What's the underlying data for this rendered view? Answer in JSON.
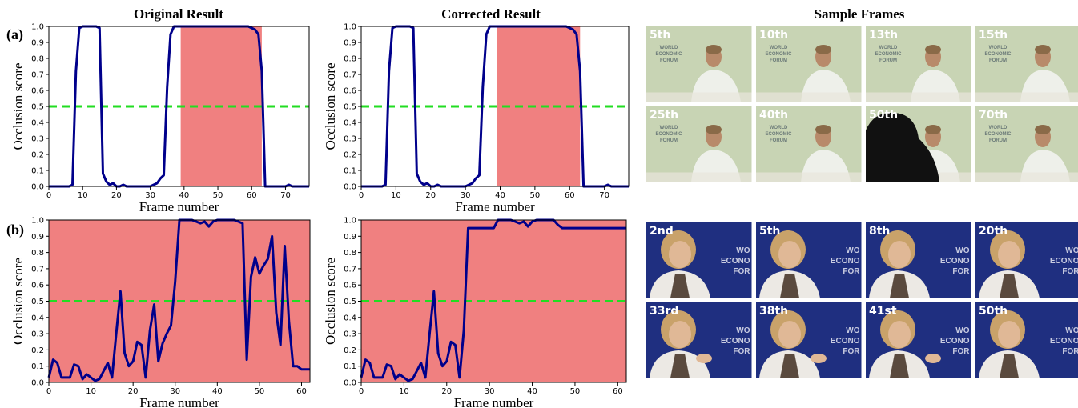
{
  "headers": {
    "original": "Original Result",
    "corrected": "Corrected Result",
    "frames": "Sample Frames"
  },
  "row_labels": [
    "(a)",
    "(b)"
  ],
  "chart_data": [
    {
      "id": "a-original",
      "type": "line",
      "xlabel": "Frame number",
      "ylabel": "Occlusion score",
      "xlim": [
        0,
        77
      ],
      "ylim": [
        0,
        1
      ],
      "xticks": [
        0,
        10,
        20,
        30,
        40,
        50,
        60,
        70
      ],
      "yticks": [
        0,
        0.1,
        0.2,
        0.3,
        0.4,
        0.5,
        0.6,
        0.7,
        0.8,
        0.9,
        1.0
      ],
      "threshold": 0.5,
      "shaded_spans": [
        [
          39,
          63
        ]
      ],
      "line_color": "#00008b",
      "threshold_color": "#22dd22",
      "shade_color": "#f08080",
      "x": [
        0,
        1,
        2,
        3,
        4,
        5,
        6,
        7,
        8,
        9,
        10,
        11,
        12,
        13,
        14,
        15,
        16,
        17,
        18,
        19,
        20,
        21,
        22,
        23,
        24,
        25,
        26,
        27,
        28,
        29,
        30,
        31,
        32,
        33,
        34,
        35,
        36,
        37,
        38,
        39,
        40,
        41,
        42,
        43,
        44,
        45,
        46,
        47,
        48,
        49,
        50,
        51,
        52,
        53,
        54,
        55,
        56,
        57,
        58,
        59,
        60,
        61,
        62,
        63,
        64,
        65,
        66,
        67,
        68,
        69,
        70,
        71,
        72,
        73,
        74,
        75,
        76,
        77
      ],
      "y": [
        0,
        0,
        0,
        0,
        0,
        0,
        0,
        0.01,
        0.72,
        0.99,
        1,
        1,
        1,
        1,
        1,
        0.99,
        0.08,
        0.03,
        0.01,
        0.02,
        0.0,
        0.0,
        0.01,
        0.0,
        0.0,
        0.0,
        0.0,
        0.0,
        0.0,
        0.0,
        0.0,
        0.01,
        0.02,
        0.05,
        0.07,
        0.62,
        0.95,
        1,
        1,
        1,
        1,
        1,
        1,
        1,
        1,
        1,
        1,
        1,
        1,
        1,
        1,
        1,
        1,
        1,
        1,
        1,
        1,
        1,
        1,
        1,
        0.99,
        0.98,
        0.95,
        0.72,
        0,
        0,
        0,
        0,
        0,
        0,
        0,
        0.01,
        0,
        0,
        0,
        0,
        0,
        0
      ]
    },
    {
      "id": "a-corrected",
      "type": "line",
      "xlabel": "Frame number",
      "ylabel": "Occlusion score",
      "xlim": [
        0,
        77
      ],
      "ylim": [
        0,
        1
      ],
      "xticks": [
        0,
        10,
        20,
        30,
        40,
        50,
        60,
        70
      ],
      "yticks": [
        0,
        0.1,
        0.2,
        0.3,
        0.4,
        0.5,
        0.6,
        0.7,
        0.8,
        0.9,
        1.0
      ],
      "threshold": 0.5,
      "shaded_spans": [
        [
          39,
          63
        ]
      ],
      "line_color": "#00008b",
      "threshold_color": "#22dd22",
      "shade_color": "#f08080",
      "x": [
        0,
        1,
        2,
        3,
        4,
        5,
        6,
        7,
        8,
        9,
        10,
        11,
        12,
        13,
        14,
        15,
        16,
        17,
        18,
        19,
        20,
        21,
        22,
        23,
        24,
        25,
        26,
        27,
        28,
        29,
        30,
        31,
        32,
        33,
        34,
        35,
        36,
        37,
        38,
        39,
        40,
        41,
        42,
        43,
        44,
        45,
        46,
        47,
        48,
        49,
        50,
        51,
        52,
        53,
        54,
        55,
        56,
        57,
        58,
        59,
        60,
        61,
        62,
        63,
        64,
        65,
        66,
        67,
        68,
        69,
        70,
        71,
        72,
        73,
        74,
        75,
        76,
        77
      ],
      "y": [
        0,
        0,
        0,
        0,
        0,
        0,
        0,
        0.01,
        0.72,
        0.99,
        1,
        1,
        1,
        1,
        1,
        0.99,
        0.08,
        0.03,
        0.01,
        0.02,
        0.0,
        0.0,
        0.01,
        0.0,
        0.0,
        0.0,
        0.0,
        0.0,
        0.0,
        0.0,
        0.0,
        0.01,
        0.02,
        0.05,
        0.07,
        0.62,
        0.95,
        1,
        1,
        1,
        1,
        1,
        1,
        1,
        1,
        1,
        1,
        1,
        1,
        1,
        1,
        1,
        1,
        1,
        1,
        1,
        1,
        1,
        1,
        1,
        0.99,
        0.98,
        0.95,
        0.72,
        0,
        0,
        0,
        0,
        0,
        0,
        0,
        0.01,
        0,
        0,
        0,
        0,
        0,
        0
      ]
    },
    {
      "id": "b-original",
      "type": "line",
      "xlabel": "Frame number",
      "ylabel": "Occlusion score",
      "xlim": [
        0,
        62
      ],
      "ylim": [
        0,
        1
      ],
      "xticks": [
        0,
        10,
        20,
        30,
        40,
        50,
        60
      ],
      "yticks": [
        0,
        0.1,
        0.2,
        0.3,
        0.4,
        0.5,
        0.6,
        0.7,
        0.8,
        0.9,
        1.0
      ],
      "threshold": 0.5,
      "shaded_spans": [
        [
          0,
          62
        ]
      ],
      "line_color": "#00008b",
      "threshold_color": "#22dd22",
      "shade_color": "#f08080",
      "x": [
        0,
        1,
        2,
        3,
        4,
        5,
        6,
        7,
        8,
        9,
        10,
        11,
        12,
        13,
        14,
        15,
        16,
        17,
        18,
        19,
        20,
        21,
        22,
        23,
        24,
        25,
        26,
        27,
        28,
        29,
        30,
        31,
        32,
        33,
        34,
        35,
        36,
        37,
        38,
        39,
        40,
        41,
        42,
        43,
        44,
        45,
        46,
        47,
        48,
        49,
        50,
        51,
        52,
        53,
        54,
        55,
        56,
        57,
        58,
        59,
        60,
        61,
        62
      ],
      "y": [
        0.03,
        0.14,
        0.12,
        0.03,
        0.03,
        0.03,
        0.11,
        0.1,
        0.02,
        0.05,
        0.03,
        0.01,
        0.02,
        0.07,
        0.12,
        0.03,
        0.3,
        0.56,
        0.18,
        0.1,
        0.13,
        0.25,
        0.23,
        0.03,
        0.32,
        0.48,
        0.13,
        0.24,
        0.3,
        0.35,
        0.62,
        1.0,
        1.0,
        1.0,
        1.0,
        0.99,
        0.98,
        0.99,
        0.96,
        0.99,
        1.0,
        1.0,
        1.0,
        1.0,
        1.0,
        0.99,
        0.98,
        0.14,
        0.65,
        0.77,
        0.67,
        0.72,
        0.76,
        0.9,
        0.43,
        0.23,
        0.84,
        0.38,
        0.1,
        0.1,
        0.08,
        0.08,
        0.08
      ]
    },
    {
      "id": "b-corrected",
      "type": "line",
      "xlabel": "Frame number",
      "ylabel": "Occlusion score",
      "xlim": [
        0,
        62
      ],
      "ylim": [
        0,
        1
      ],
      "xticks": [
        0,
        10,
        20,
        30,
        40,
        50,
        60
      ],
      "yticks": [
        0,
        0.1,
        0.2,
        0.3,
        0.4,
        0.5,
        0.6,
        0.7,
        0.8,
        0.9,
        1.0
      ],
      "threshold": 0.5,
      "shaded_spans": [
        [
          0,
          62
        ]
      ],
      "line_color": "#00008b",
      "threshold_color": "#22dd22",
      "shade_color": "#f08080",
      "x": [
        0,
        1,
        2,
        3,
        4,
        5,
        6,
        7,
        8,
        9,
        10,
        11,
        12,
        13,
        14,
        15,
        16,
        17,
        18,
        19,
        20,
        21,
        22,
        23,
        24,
        25,
        26,
        27,
        28,
        29,
        30,
        31,
        32,
        33,
        34,
        35,
        36,
        37,
        38,
        39,
        40,
        41,
        42,
        43,
        44,
        45,
        46,
        47,
        48,
        49,
        50,
        51,
        52,
        53,
        54,
        55,
        56,
        57,
        58,
        59,
        60,
        61,
        62
      ],
      "y": [
        0.03,
        0.14,
        0.12,
        0.03,
        0.03,
        0.03,
        0.11,
        0.1,
        0.02,
        0.05,
        0.03,
        0.01,
        0.02,
        0.07,
        0.12,
        0.03,
        0.3,
        0.56,
        0.18,
        0.1,
        0.13,
        0.25,
        0.23,
        0.03,
        0.32,
        0.95,
        0.95,
        0.95,
        0.95,
        0.95,
        0.95,
        0.95,
        1.0,
        1.0,
        1.0,
        1.0,
        0.99,
        0.98,
        0.99,
        0.96,
        0.99,
        1.0,
        1.0,
        1.0,
        1.0,
        1.0,
        0.97,
        0.95,
        0.95,
        0.95,
        0.95,
        0.95,
        0.95,
        0.95,
        0.95,
        0.95,
        0.95,
        0.95,
        0.95,
        0.95,
        0.95,
        0.95,
        0.95
      ]
    }
  ],
  "frames": {
    "a": {
      "labels": [
        "5th",
        "10th",
        "13th",
        "15th",
        "25th",
        "40th",
        "50th",
        "70th"
      ],
      "background": "#c8d4b4",
      "occluded_index": 6
    },
    "b": {
      "labels": [
        "2nd",
        "5th",
        "8th",
        "20th",
        "33rd",
        "38th",
        "41st",
        "50th"
      ],
      "background": "#1f2f80",
      "watermark": [
        "WO",
        "ECONO",
        "FOR"
      ]
    },
    "watermark_a": [
      "WORLD",
      "ECONOMIC",
      "FORUM"
    ]
  }
}
